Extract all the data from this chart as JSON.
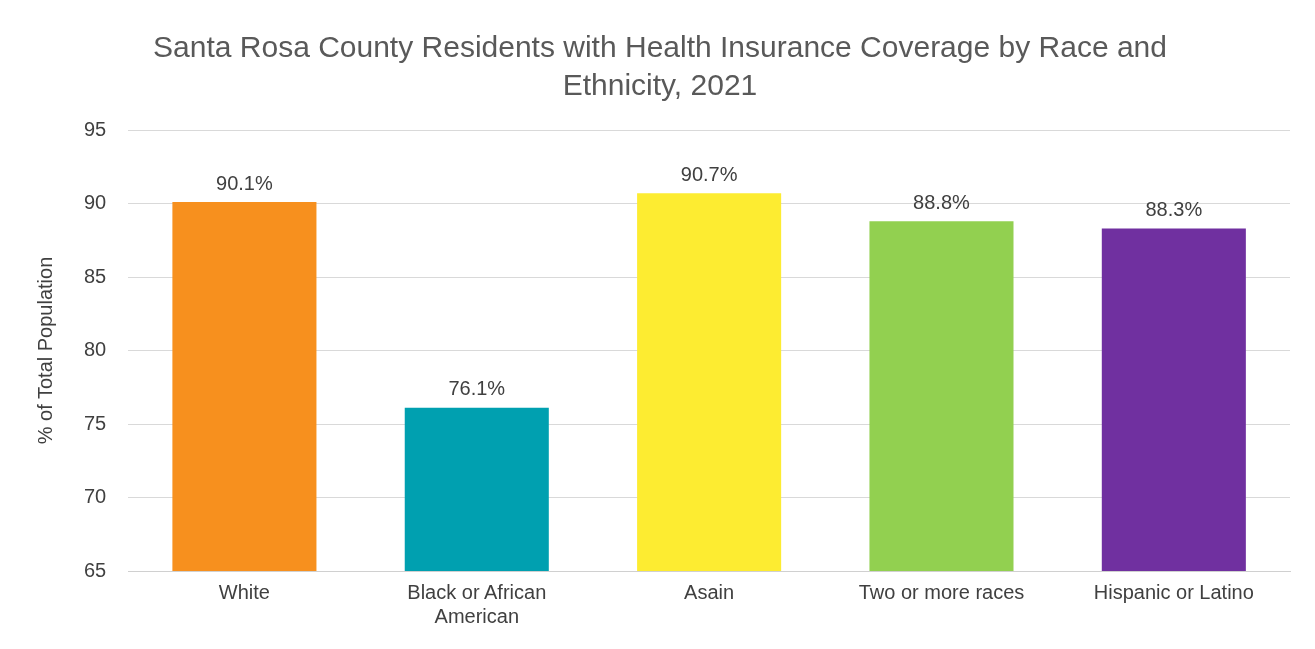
{
  "chart_data": {
    "type": "bar",
    "title": "Santa Rosa County Residents with Health Insurance Coverage by Race and Ethnicity, 2021",
    "ylabel": "% of Total Population",
    "categories": [
      "White",
      "Black or African American",
      "Asain",
      "Two or more races",
      "Hispanic or Latino"
    ],
    "values": [
      90.1,
      76.1,
      90.7,
      88.8,
      88.3
    ],
    "colors": [
      "#f7901e",
      "#00a0b0",
      "#fdec31",
      "#92d050",
      "#7030a0"
    ],
    "value_labels": [
      "90.1%",
      "76.1%",
      "90.7%",
      "88.8%",
      "88.3%"
    ],
    "ylim": [
      65,
      95
    ],
    "yticks": [
      65,
      70,
      75,
      80,
      85,
      90,
      95
    ],
    "grid": "y",
    "legend": false
  }
}
